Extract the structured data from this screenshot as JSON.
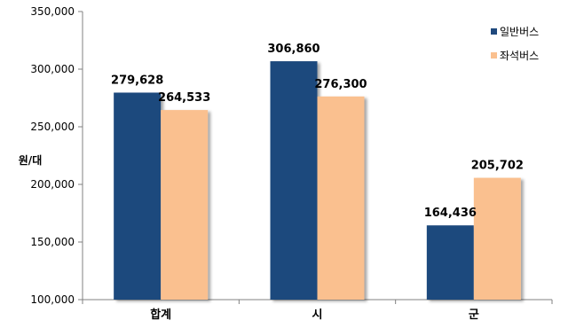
{
  "chart_data": {
    "type": "bar",
    "title": "",
    "xlabel": "",
    "ylabel": "원/대",
    "categories": [
      "합계",
      "시",
      "군"
    ],
    "series": [
      {
        "name": "일반버스",
        "values": [
          279628,
          306860,
          164436
        ],
        "color": "#1F497D"
      },
      {
        "name": "좌석버스",
        "values": [
          264533,
          276300,
          205702
        ],
        "color": "#FAC08F"
      }
    ],
    "data_labels": [
      [
        "279,628",
        "306,860",
        "164,436"
      ],
      [
        "264,533",
        "276,300",
        "205,702"
      ]
    ],
    "ylim": [
      100000,
      350000
    ],
    "y_ticks": [
      100000,
      150000,
      200000,
      250000,
      300000,
      350000
    ],
    "y_tick_labels": [
      "100,000",
      "150,000",
      "200,000",
      "250,000",
      "300,000",
      "350,000"
    ],
    "grid": false,
    "legend_position": "top-right"
  }
}
